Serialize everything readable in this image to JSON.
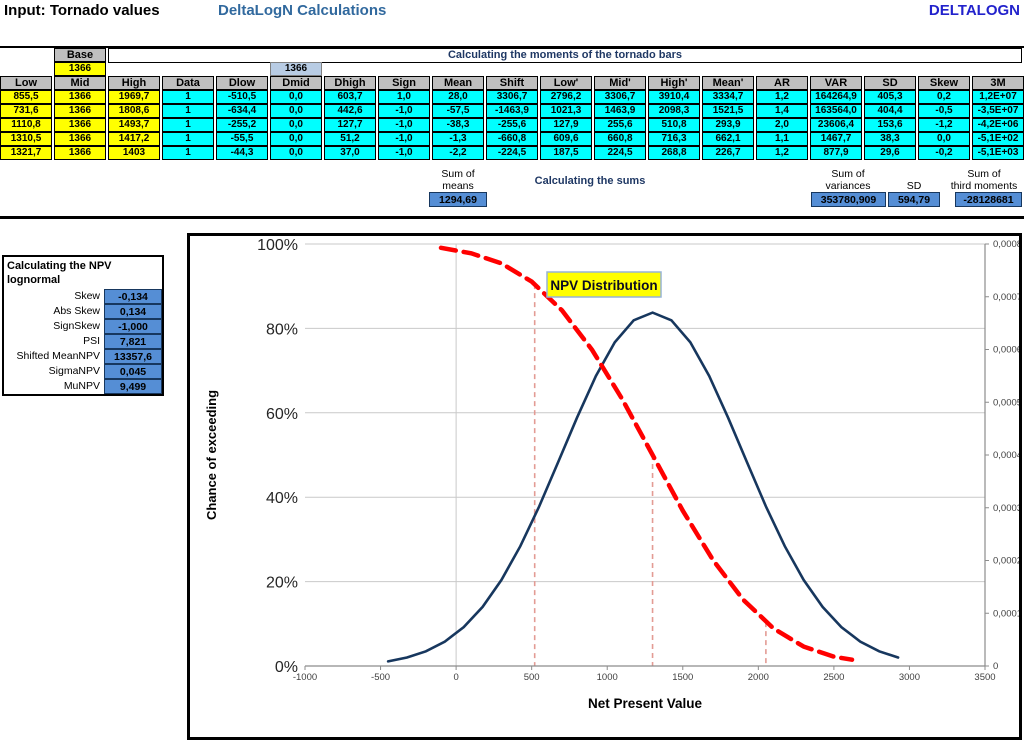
{
  "titles": {
    "left": "Input: Tornado values",
    "center": "DeltaLogN Calculations",
    "right": "DELTALOGN"
  },
  "table": {
    "base_label": "Base",
    "base_value": "1366",
    "dmid_value": "1366",
    "moments_title": "Calculating the moments of the tornado bars",
    "headers": [
      "Low",
      "Mid",
      "High",
      "Data",
      "Dlow",
      "Dmid",
      "Dhigh",
      "Sign",
      "Mean",
      "Shift",
      "Low'",
      "Mid'",
      "High'",
      "Mean'",
      "AR",
      "VAR",
      "SD",
      "Skew",
      "3M"
    ],
    "rows": [
      [
        "855,5",
        "1366",
        "1969,7",
        "1",
        "-510,5",
        "0,0",
        "603,7",
        "1,0",
        "28,0",
        "3306,7",
        "2796,2",
        "3306,7",
        "3910,4",
        "3334,7",
        "1,2",
        "164264,9",
        "405,3",
        "0,2",
        "1,2E+07"
      ],
      [
        "731,6",
        "1366",
        "1808,6",
        "1",
        "-634,4",
        "0,0",
        "442,6",
        "-1,0",
        "-57,5",
        "-1463,9",
        "1021,3",
        "1463,9",
        "2098,3",
        "1521,5",
        "1,4",
        "163564,0",
        "404,4",
        "-0,5",
        "-3,5E+07"
      ],
      [
        "1110,8",
        "1366",
        "1493,7",
        "1",
        "-255,2",
        "0,0",
        "127,7",
        "-1,0",
        "-38,3",
        "-255,6",
        "127,9",
        "255,6",
        "510,8",
        "293,9",
        "2,0",
        "23606,4",
        "153,6",
        "-1,2",
        "-4,2E+06"
      ],
      [
        "1310,5",
        "1366",
        "1417,2",
        "1",
        "-55,5",
        "0,0",
        "51,2",
        "-1,0",
        "-1,3",
        "-660,8",
        "609,6",
        "660,8",
        "716,3",
        "662,1",
        "1,1",
        "1467,7",
        "38,3",
        "0,0",
        "-5,1E+02"
      ],
      [
        "1321,7",
        "1366",
        "1403",
        "1",
        "-44,3",
        "0,0",
        "37,0",
        "-1,0",
        "-2,2",
        "-224,5",
        "187,5",
        "224,5",
        "268,8",
        "226,7",
        "1,2",
        "877,9",
        "29,6",
        "-0,2",
        "-5,1E+03"
      ]
    ]
  },
  "sums": {
    "title": "Calculating the sums",
    "means_l1": "Sum of",
    "means_l2": "means",
    "means_value": "1294,69",
    "var_l1": "Sum of",
    "var_l2": "variances",
    "var_value": "353780,909",
    "sd_label": "SD",
    "sd_value": "594,79",
    "third_l1": "Sum of",
    "third_l2": "third moments",
    "third_value": "-28128681"
  },
  "npv_panel": {
    "title_line1": "Calculating the NPV",
    "title_line2": "lognormal",
    "rows": [
      {
        "label": "Skew",
        "value": "-0,134"
      },
      {
        "label": "Abs Skew",
        "value": "0,134"
      },
      {
        "label": "SignSkew",
        "value": "-1,000"
      },
      {
        "label": "PSI",
        "value": "7,821"
      },
      {
        "label": "Shifted MeanNPV",
        "value": "13357,6"
      },
      {
        "label": "SigmaNPV",
        "value": "0,045"
      },
      {
        "label": "MuNPV",
        "value": "9,499"
      }
    ]
  },
  "chart_data": {
    "type": "line",
    "title_label": "NPV Distribution",
    "xlabel": "Net Present Value",
    "ylabel_left": "Chance of exceeding",
    "xlim": [
      -1000,
      3500
    ],
    "left_ylim_pct": [
      0,
      100
    ],
    "right_ylim": [
      0,
      0.0008
    ],
    "grid": true,
    "x_ticks": [
      {
        "label": "-1000",
        "value": -1000
      },
      {
        "label": "-500",
        "value": -500
      },
      {
        "label": "0",
        "value": 0
      },
      {
        "label": "500",
        "value": 500
      },
      {
        "label": "1000",
        "value": 1000
      },
      {
        "label": "1500",
        "value": 1500
      },
      {
        "label": "2000",
        "value": 2000
      },
      {
        "label": "2500",
        "value": 2500
      },
      {
        "label": "3000",
        "value": 3000
      },
      {
        "label": "3500",
        "value": 3500
      }
    ],
    "left_ticks": [
      {
        "label": "0%",
        "pct": 0
      },
      {
        "label": "20%",
        "pct": 20
      },
      {
        "label": "40%",
        "pct": 40
      },
      {
        "label": "60%",
        "pct": 60
      },
      {
        "label": "80%",
        "pct": 80
      },
      {
        "label": "100%",
        "pct": 100
      }
    ],
    "right_ticks": [
      {
        "label": "0",
        "value": 0
      },
      {
        "label": "0,0001",
        "value": 0.0001
      },
      {
        "label": "0,0002",
        "value": 0.0002
      },
      {
        "label": "0,0003",
        "value": 0.0003
      },
      {
        "label": "0,0004",
        "value": 0.0004
      },
      {
        "label": "0,0005",
        "value": 0.0005
      },
      {
        "label": "0,0006",
        "value": 0.0006
      },
      {
        "label": "0,0007",
        "value": 0.0007
      },
      {
        "label": "0,0008",
        "value": 0.0008
      }
    ],
    "zero_gridline_x": 0,
    "series": [
      {
        "name": "chance-of-exceeding",
        "axis": "left",
        "style": "dashed",
        "color": "#FF0000",
        "points": [
          [
            -100,
            99.1
          ],
          [
            100,
            97.8
          ],
          [
            300,
            95.4
          ],
          [
            500,
            91.1
          ],
          [
            700,
            84.3
          ],
          [
            900,
            74.9
          ],
          [
            1100,
            63.2
          ],
          [
            1300,
            50.0
          ],
          [
            1500,
            36.8
          ],
          [
            1700,
            25.1
          ],
          [
            1900,
            15.7
          ],
          [
            2100,
            8.9
          ],
          [
            2300,
            4.6
          ],
          [
            2500,
            2.2
          ],
          [
            2620,
            1.5
          ]
        ]
      },
      {
        "name": "npv-pdf",
        "axis": "right",
        "style": "solid",
        "color": "#17375E",
        "points": [
          [
            -450,
            8.8e-06
          ],
          [
            -325,
            1.61e-05
          ],
          [
            -200,
            2.79e-05
          ],
          [
            -75,
            4.62e-05
          ],
          [
            50,
            7.37e-05
          ],
          [
            175,
            0.0001121
          ],
          [
            300,
            0.0001631
          ],
          [
            425,
            0.0002271
          ],
          [
            550,
            0.0003026
          ],
          [
            675,
            0.0003862
          ],
          [
            800,
            0.0004707
          ],
          [
            925,
            0.0005497
          ],
          [
            1050,
            0.0006136
          ],
          [
            1175,
            0.0006554
          ],
          [
            1300,
            0.00067
          ],
          [
            1425,
            0.0006554
          ],
          [
            1550,
            0.0006136
          ],
          [
            1675,
            0.0005497
          ],
          [
            1800,
            0.0004707
          ],
          [
            1925,
            0.0003862
          ],
          [
            2050,
            0.0003026
          ],
          [
            2175,
            0.0002271
          ],
          [
            2300,
            0.0001631
          ],
          [
            2425,
            0.0001121
          ],
          [
            2550,
            7.37e-05
          ],
          [
            2675,
            4.62e-05
          ],
          [
            2800,
            2.79e-05
          ],
          [
            2925,
            1.61e-05
          ]
        ]
      }
    ],
    "percentile_lines": [
      {
        "x": 520,
        "top_pct": 90.5
      },
      {
        "x": 1300,
        "top_pct": 50
      },
      {
        "x": 2050,
        "top_pct": 10.4
      }
    ]
  },
  "colors": {
    "cyan_cell": "#00FFFF",
    "yellow_cell": "#FFFF00",
    "header_gray": "#BFBFBF",
    "blue_cell": "#558ED5",
    "light_blue_cell": "#B8CCE4",
    "red_curve": "#FF0000",
    "navy_curve": "#17375E",
    "pink_dash": "#E39B94",
    "gridline": "#C9C9C9",
    "axis": "#8C8C8C",
    "label_yellow_bg": "#FFFF00",
    "label_border": "#95B3D7"
  }
}
